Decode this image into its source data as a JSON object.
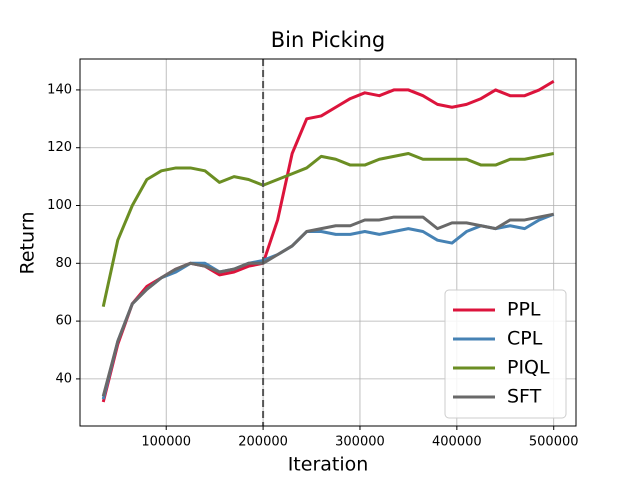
{
  "chart_data": {
    "type": "line",
    "title": "Bin Picking",
    "xlabel": "Iteration",
    "ylabel": "Return",
    "x": [
      35000,
      50000,
      65000,
      80000,
      95000,
      110000,
      125000,
      140000,
      155000,
      170000,
      185000,
      200000,
      215000,
      230000,
      245000,
      260000,
      275000,
      290000,
      305000,
      320000,
      335000,
      350000,
      365000,
      380000,
      395000,
      410000,
      425000,
      440000,
      455000,
      470000,
      485000,
      500000
    ],
    "series": [
      {
        "name": "PPL",
        "color": "#dc143c",
        "values": [
          32,
          52,
          66,
          72,
          75,
          78,
          80,
          79,
          76,
          77,
          79,
          80,
          95,
          118,
          130,
          131,
          134,
          137,
          139,
          138,
          140,
          140,
          138,
          135,
          134,
          135,
          137,
          140,
          138,
          138,
          140,
          143
        ]
      },
      {
        "name": "CPL",
        "color": "#4682b4",
        "values": [
          33,
          53,
          66,
          71,
          75,
          77,
          80,
          80,
          77,
          78,
          80,
          81,
          83,
          86,
          91,
          91,
          90,
          90,
          91,
          90,
          91,
          92,
          91,
          88,
          87,
          91,
          93,
          92,
          93,
          92,
          95,
          97
        ]
      },
      {
        "name": "PIQL",
        "color": "#6b8e23",
        "values": [
          65,
          88,
          100,
          109,
          112,
          113,
          113,
          112,
          108,
          110,
          109,
          107,
          109,
          111,
          113,
          117,
          116,
          114,
          114,
          116,
          117,
          118,
          116,
          116,
          116,
          116,
          114,
          114,
          116,
          116,
          117,
          118
        ]
      },
      {
        "name": "SFT",
        "color": "#696969",
        "values": [
          34,
          53,
          66,
          71,
          75,
          78,
          80,
          79,
          77,
          78,
          80,
          80,
          83,
          86,
          91,
          92,
          93,
          93,
          95,
          95,
          96,
          96,
          96,
          92,
          94,
          94,
          93,
          92,
          95,
          95,
          96,
          97
        ]
      }
    ],
    "vline": 200000,
    "xlim": [
      11000,
      523000
    ],
    "ylim": [
      23.7,
      150.7
    ],
    "xticks": [
      100000,
      200000,
      300000,
      400000,
      500000
    ],
    "yticks": [
      40,
      60,
      80,
      100,
      120,
      140
    ],
    "grid": true,
    "legend": "lower right"
  }
}
